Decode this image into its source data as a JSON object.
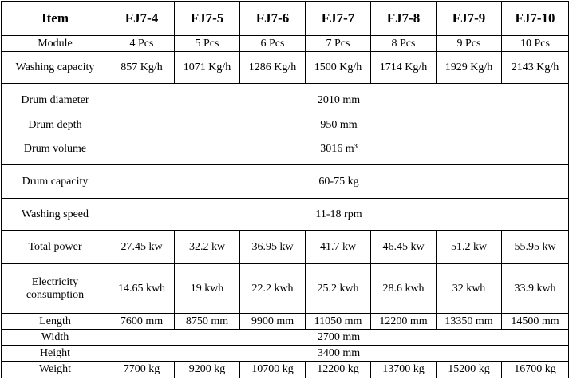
{
  "table": {
    "header": [
      "Item",
      "FJ7-4",
      "FJ7-5",
      "FJ7-6",
      "FJ7-7",
      "FJ7-8",
      "FJ7-9",
      "FJ7-10"
    ],
    "rows": [
      [
        "Module",
        "4 Pcs",
        "5 Pcs",
        "6 Pcs",
        "7 Pcs",
        "8 Pcs",
        "9 Pcs",
        "10 Pcs"
      ],
      [
        "Washing capacity",
        "857 Kg/h",
        "1071 Kg/h",
        "1286 Kg/h",
        "1500 Kg/h",
        "1714 Kg/h",
        "1929 Kg/h",
        "2143 Kg/h"
      ],
      [
        "Drum diameter",
        "2010 mm"
      ],
      [
        "Drum depth",
        "950 mm"
      ],
      [
        "Drum volume",
        "3016 m³"
      ],
      [
        "Drum capacity",
        "60-75 kg"
      ],
      [
        "Washing speed",
        "11-18 rpm"
      ],
      [
        "Total power",
        "27.45 kw",
        "32.2 kw",
        "36.95 kw",
        "41.7 kw",
        "46.45 kw",
        "51.2 kw",
        "55.95 kw"
      ],
      [
        "Electricity consumption",
        "14.65 kwh",
        "19 kwh",
        "22.2 kwh",
        "25.2 kwh",
        "28.6 kwh",
        "32 kwh",
        "33.9 kwh"
      ],
      [
        "Length",
        "7600 mm",
        "8750 mm",
        "9900 mm",
        "11050 mm",
        "12200 mm",
        "13350 mm",
        "14500 mm"
      ],
      [
        "Width",
        "2700 mm"
      ],
      [
        "Height",
        "3400 mm"
      ],
      [
        "Weight",
        "7700 kg",
        "9200 kg",
        "10700 kg",
        "12200 kg",
        "13700 kg",
        "15200 kg",
        "16700 kg"
      ]
    ]
  }
}
